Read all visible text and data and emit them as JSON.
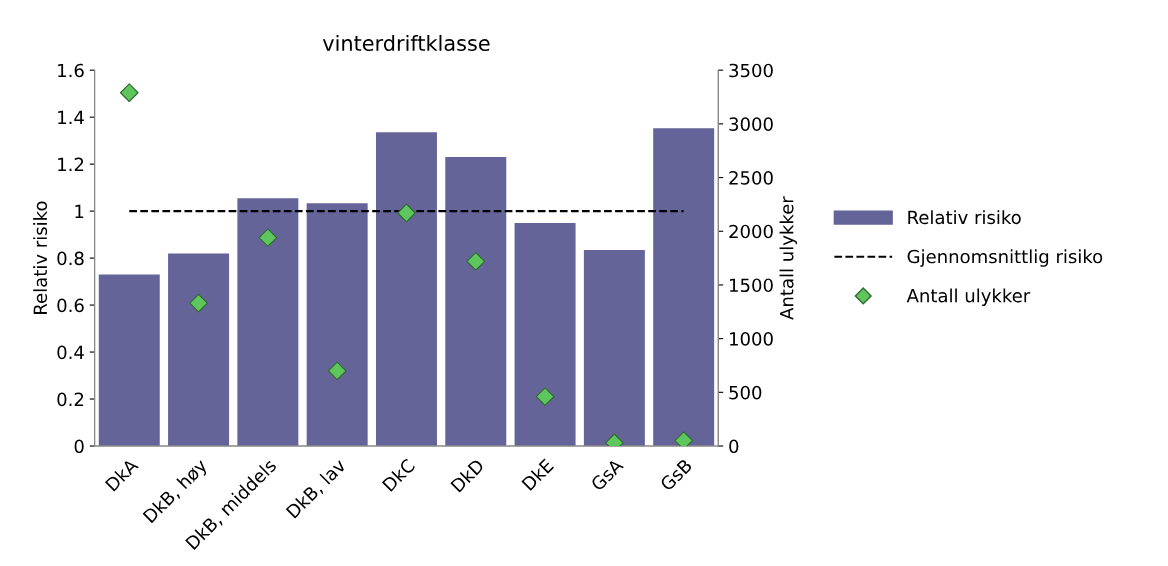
{
  "chart_data": {
    "type": "bar",
    "title": "vinterdriftklasse",
    "ylabel": "Relativ risiko",
    "y2label": "Antall ulykker",
    "categories": [
      "DkA",
      "DkB, høy",
      "DkB, middels",
      "DkB, lav",
      "DkC",
      "DkD",
      "DkE",
      "GsA",
      "GsB"
    ],
    "series": [
      {
        "name": "Relativ risiko",
        "color": "#646499",
        "values": [
          0.73,
          0.82,
          1.055,
          1.034,
          1.336,
          1.23,
          0.949,
          0.834,
          1.353
        ]
      },
      {
        "name": "Antall ulykker",
        "type": "scatter",
        "axis": "y2",
        "color": "#5dc65d",
        "values": [
          3290,
          1330,
          1940,
          700,
          2170,
          1720,
          460,
          30,
          50
        ]
      }
    ],
    "ref_lines": [
      {
        "axis": "y",
        "value": 1,
        "label": "Gjennomsnittlig risiko",
        "color": "#000000",
        "line_style": "dashed"
      }
    ],
    "ylim": [
      0,
      1.6
    ],
    "yticks": [
      0,
      0.2,
      0.4,
      0.6,
      0.8,
      1,
      1.2,
      1.4,
      1.6
    ],
    "y2lim": [
      0,
      3500
    ],
    "y2ticks": [
      0,
      500,
      1000,
      1500,
      2000,
      2500,
      3000,
      3500
    ],
    "marker": "diamond",
    "legend": "right",
    "grid": false
  }
}
